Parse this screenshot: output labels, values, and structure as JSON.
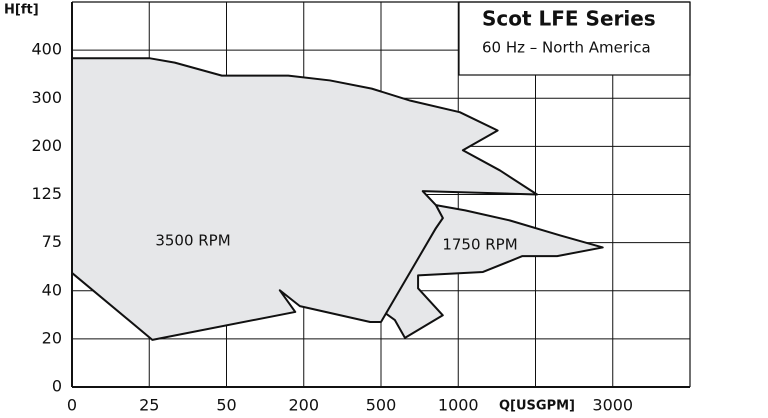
{
  "chart_data": {
    "type": "area",
    "title": "Scot LFE Series",
    "subtitle": "60 Hz – North America",
    "xlabel": "Q[USGPM]",
    "ylabel": "H[ft]",
    "xlim": [
      0,
      8
    ],
    "ylim": [
      0,
      8
    ],
    "xticks": [
      {
        "value": 0,
        "label": "0"
      },
      {
        "value": 1,
        "label": "25"
      },
      {
        "value": 2,
        "label": "50"
      },
      {
        "value": 3,
        "label": "200"
      },
      {
        "value": 4,
        "label": "500"
      },
      {
        "value": 5,
        "label": "1000"
      },
      {
        "value": 7,
        "label": "3000"
      }
    ],
    "yticks": [
      {
        "value": 0,
        "label": "0"
      },
      {
        "value": 1,
        "label": "20"
      },
      {
        "value": 2,
        "label": "40"
      },
      {
        "value": 3,
        "label": "75"
      },
      {
        "value": 4,
        "label": "125"
      },
      {
        "value": 5,
        "label": "200"
      },
      {
        "value": 6,
        "label": "300"
      },
      {
        "value": 7,
        "label": "400"
      }
    ],
    "grid": true,
    "series": [
      {
        "name": "1750 RPM",
        "color": "#e6e7e9",
        "x": [
          4.71,
          5.09,
          5.67,
          6.32,
          6.87,
          6.28,
          5.83,
          5.32,
          4.48,
          4.48,
          4.8,
          4.31,
          4.18,
          4.0,
          4.71,
          4.8
        ],
        "y": [
          3.78,
          3.67,
          3.46,
          3.15,
          2.9,
          2.72,
          2.72,
          2.39,
          2.32,
          2.05,
          1.49,
          1.02,
          1.39,
          1.6,
          3.3,
          3.51
        ]
      },
      {
        "name": "3500 RPM",
        "color": "#e6e7e9",
        "x": [
          0,
          1.01,
          1.33,
          1.94,
          2.8,
          3.34,
          3.88,
          4.38,
          5.02,
          5.51,
          5.06,
          5.54,
          6.02,
          4.54,
          4.71,
          4.8,
          4.71,
          4.0,
          3.86,
          2.95,
          2.69,
          2.89,
          1.04,
          0
        ],
        "y": [
          6.83,
          6.83,
          6.74,
          6.47,
          6.47,
          6.37,
          6.2,
          5.95,
          5.71,
          5.33,
          4.92,
          4.5,
          4.0,
          4.07,
          3.78,
          3.51,
          3.3,
          1.35,
          1.35,
          1.68,
          2.01,
          1.56,
          0.98,
          2.37
        ]
      }
    ]
  }
}
